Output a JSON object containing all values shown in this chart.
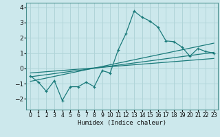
{
  "title": "",
  "xlabel": "Humidex (Indice chaleur)",
  "bg_color": "#cce8ec",
  "grid_color": "#b0d4d8",
  "line_color": "#1a7a7a",
  "xlim": [
    -0.5,
    23.5
  ],
  "ylim": [
    -2.7,
    4.3
  ],
  "xticks": [
    0,
    1,
    2,
    3,
    4,
    5,
    6,
    7,
    8,
    9,
    10,
    11,
    12,
    13,
    14,
    15,
    16,
    17,
    18,
    19,
    20,
    21,
    22,
    23
  ],
  "yticks": [
    -2,
    -1,
    0,
    1,
    2,
    3,
    4
  ],
  "data_x": [
    0,
    1,
    2,
    3,
    4,
    5,
    6,
    7,
    8,
    9,
    10,
    11,
    12,
    13,
    14,
    15,
    16,
    17,
    18,
    19,
    20,
    21,
    22,
    23
  ],
  "data_y": [
    -0.5,
    -0.9,
    -1.5,
    -0.8,
    -2.1,
    -1.2,
    -1.2,
    -0.9,
    -1.2,
    -0.15,
    -0.3,
    1.2,
    2.3,
    3.75,
    3.35,
    3.1,
    2.7,
    1.8,
    1.75,
    1.4,
    0.8,
    1.3,
    1.1,
    1.0
  ],
  "line1_x": [
    0,
    23
  ],
  "line1_y": [
    -0.55,
    1.05
  ],
  "line2_x": [
    0,
    23
  ],
  "line2_y": [
    -0.85,
    1.65
  ],
  "line3_x": [
    0,
    23
  ],
  "line3_y": [
    -0.3,
    0.65
  ]
}
